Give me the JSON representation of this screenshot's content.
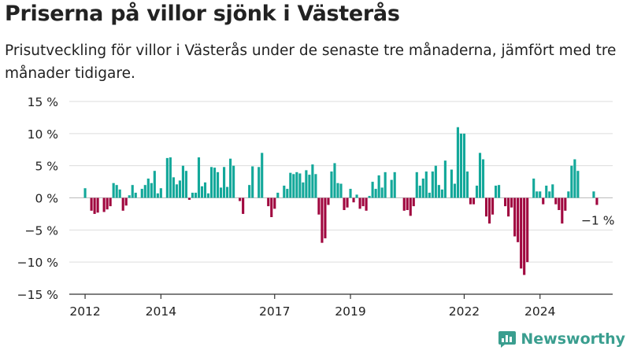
{
  "title": "Priserna på villor sjönk i Västerås",
  "subtitle": "Prisutveckling för villor i Västerås under de senaste tre månaderna, jämfört med tre månader tidigare.",
  "brand": "Newsworthy",
  "colors": {
    "positive": "#13a89a",
    "negative": "#a0073f",
    "grid": "#dddddd",
    "axis": "#333333",
    "brand": "#3a9e8f"
  },
  "chart_data": {
    "type": "bar",
    "ylim": [
      -15,
      15
    ],
    "yticks": [
      15,
      10,
      5,
      0,
      -5,
      -10,
      -15
    ],
    "ytick_labels": [
      "15 %",
      "10 %",
      "5 %",
      "0 %",
      "−5 %",
      "−10 %",
      "−15 %"
    ],
    "x_start": "2011-08",
    "x_end": "2025-12",
    "xticks": [
      {
        "label": "2012",
        "date": "2012-01"
      },
      {
        "label": "2014",
        "date": "2014-01"
      },
      {
        "label": "2017",
        "date": "2017-01"
      },
      {
        "label": "2019",
        "date": "2019-01"
      },
      {
        "label": "2022",
        "date": "2022-01"
      },
      {
        "label": "2024",
        "date": "2024-01"
      }
    ],
    "first_period": "2012-01",
    "values": [
      1.5,
      0,
      -2.0,
      -2.5,
      -2.3,
      0,
      -2.2,
      -1.8,
      -1.3,
      2.3,
      2.0,
      1.3,
      -2.0,
      -1.2,
      0.4,
      2.0,
      0.8,
      0,
      1.4,
      2.0,
      3.0,
      2.3,
      4.2,
      0.7,
      1.5,
      0,
      6.2,
      6.3,
      3.2,
      2.1,
      2.7,
      5.0,
      4.2,
      -0.3,
      0.8,
      0.8,
      6.3,
      1.8,
      2.4,
      0.7,
      4.8,
      4.7,
      4.0,
      1.6,
      4.8,
      1.7,
      6.1,
      5.0,
      0,
      -0.5,
      -2.5,
      0,
      2.0,
      4.9,
      0,
      4.8,
      7.0,
      0,
      -1.3,
      -3.0,
      -1.7,
      0.8,
      0,
      1.9,
      1.4,
      3.9,
      3.7,
      4.0,
      3.8,
      2.4,
      4.3,
      3.6,
      5.2,
      3.7,
      -2.6,
      -7.0,
      -6.3,
      -1.1,
      4.1,
      5.4,
      2.3,
      2.2,
      -1.9,
      -1.5,
      1.4,
      -0.7,
      0.5,
      -1.7,
      -1.3,
      -2.0,
      0.3,
      2.5,
      1.4,
      3.5,
      1.6,
      4.0,
      0,
      2.8,
      4.0,
      0,
      0,
      -2.0,
      -1.9,
      -2.8,
      -1.3,
      4.0,
      1.9,
      3.0,
      4.1,
      0.8,
      4.1,
      5.0,
      2.0,
      1.3,
      5.8,
      0,
      4.4,
      2.2,
      11.0,
      10.0,
      10.0,
      4.1,
      -1.0,
      -1.0,
      1.9,
      7.0,
      6.0,
      -2.9,
      -4.0,
      -2.6,
      1.9,
      2.0,
      0,
      -1.3,
      -2.9,
      -1.5,
      -6.0,
      -6.9,
      -11.0,
      -12.0,
      -10.0,
      0,
      3.0,
      1.0,
      1.0,
      -1.0,
      1.9,
      1.0,
      2.1,
      -1.0,
      -1.9,
      -4.0,
      -2.0,
      1.0,
      5.0,
      6.0,
      4.2,
      0,
      0,
      0,
      0,
      1.0,
      -1.1
    ],
    "annotation": {
      "text": "−1 %",
      "index": -1
    }
  }
}
